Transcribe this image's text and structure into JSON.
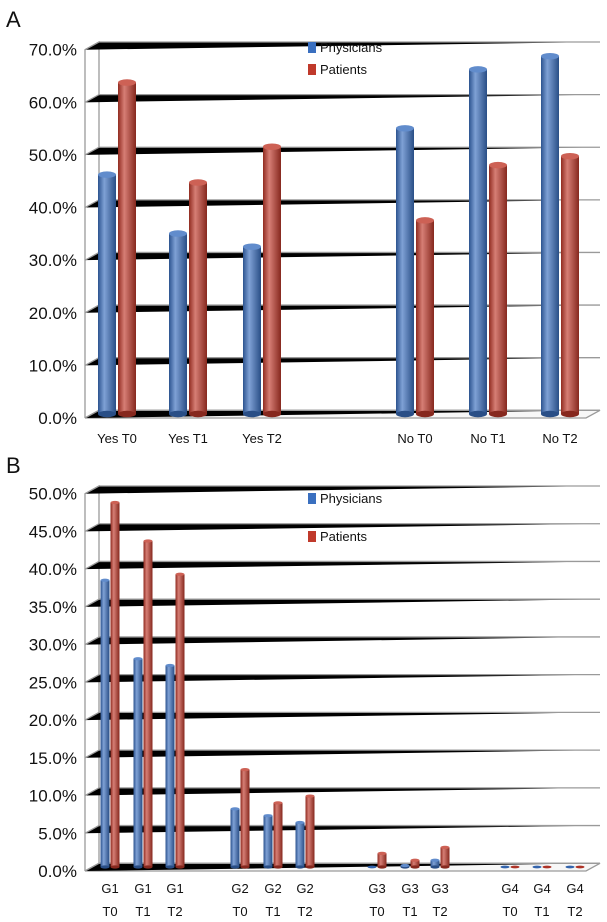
{
  "chart_data": [
    {
      "panel_label": "A",
      "type": "bar",
      "categories": [
        "Yes T0",
        "Yes T1",
        "Yes T2",
        "No T0",
        "No T1",
        "No T2"
      ],
      "series": [
        {
          "name": "Physicians",
          "color": "#3a6fbf",
          "values": [
            45.5,
            34.3,
            31.8,
            54.3,
            65.5,
            68.0
          ]
        },
        {
          "name": "Patients",
          "color": "#c0392b",
          "values": [
            63.0,
            44.0,
            50.8,
            36.8,
            47.3,
            49.0
          ]
        }
      ],
      "yticks": [
        "0.0%",
        "10.0%",
        "20.0%",
        "30.0%",
        "40.0%",
        "50.0%",
        "60.0%",
        "70.0%"
      ],
      "ylim": [
        0,
        70
      ],
      "ylabel": "",
      "xlabel": "",
      "legend_position": "top-center",
      "grid": true
    },
    {
      "panel_label": "B",
      "type": "bar",
      "categories": [
        "G1 T0",
        "G1 T1",
        "G1 T2",
        "G2 T0",
        "G2 T1",
        "G2 T2",
        "G3 T0",
        "G3 T1",
        "G3 T2",
        "G4 T0",
        "G4 T1",
        "G4 T2"
      ],
      "category_lines": [
        [
          "G1",
          "T0"
        ],
        [
          "G1",
          "T1"
        ],
        [
          "G1",
          "T2"
        ],
        [
          "G2",
          "T0"
        ],
        [
          "G2",
          "T1"
        ],
        [
          "G2",
          "T2"
        ],
        [
          "G3",
          "T0"
        ],
        [
          "G3",
          "T1"
        ],
        [
          "G3",
          "T2"
        ],
        [
          "G4",
          "T0"
        ],
        [
          "G4",
          "T1"
        ],
        [
          "G4",
          "T2"
        ]
      ],
      "series": [
        {
          "name": "Physicians",
          "color": "#3a6fbf",
          "values": [
            38.0,
            27.6,
            26.7,
            7.7,
            6.8,
            5.9,
            0,
            0.2,
            0.9,
            0,
            0,
            0
          ]
        },
        {
          "name": "Patients",
          "color": "#c0392b",
          "values": [
            48.3,
            43.2,
            38.8,
            12.9,
            8.5,
            9.4,
            1.8,
            0.9,
            2.6,
            0,
            0,
            0
          ]
        }
      ],
      "yticks": [
        "0.0%",
        "5.0%",
        "10.0%",
        "15.0%",
        "20.0%",
        "25.0%",
        "30.0%",
        "35.0%",
        "40.0%",
        "45.0%",
        "50.0%"
      ],
      "ylim": [
        0,
        50
      ],
      "ylabel": "",
      "xlabel": "",
      "legend_position": "top-center",
      "grid": true
    }
  ]
}
